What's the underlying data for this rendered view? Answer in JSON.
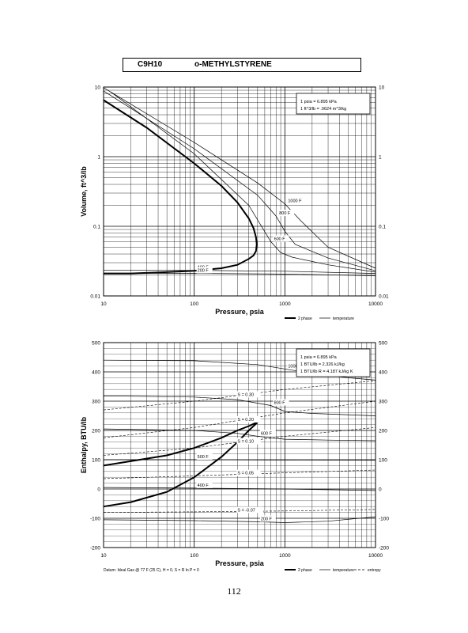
{
  "header": {
    "formula": "C9H10",
    "name": "o-METHYLSTYRENE"
  },
  "page_number": "112",
  "chart_data": [
    {
      "type": "line",
      "xscale": "log",
      "yscale": "log",
      "xlim": [
        10,
        10000
      ],
      "ylim": [
        0.01,
        10
      ],
      "xlabel": "Pressure, psia",
      "ylabel": "Volume, ft^3/lb",
      "x_ticks": [
        "10",
        "100",
        "1000",
        "10000"
      ],
      "y_ticks": [
        "0.01",
        "0.1",
        "1",
        "10"
      ],
      "conversion_box": [
        "1 psia = 6.895 kPa",
        "1 ft^3/lb = .0624 m^3/kg"
      ],
      "legend": [
        "2 phase",
        "temperature"
      ],
      "series": [
        {
          "kind": "2 phase",
          "x": [
            10,
            30,
            100,
            200,
            300,
            400,
            450,
            480,
            490,
            480,
            450,
            400,
            300,
            200,
            100,
            50,
            20,
            10
          ],
          "y": [
            6.5,
            2.6,
            0.8,
            0.38,
            0.22,
            0.13,
            0.095,
            0.07,
            0.055,
            0.044,
            0.038,
            0.034,
            0.028,
            0.025,
            0.023,
            0.022,
            0.021,
            0.021
          ]
        },
        {
          "kind": "temperature",
          "label": "1000 F",
          "x": [
            10,
            100,
            500,
            1000,
            1500,
            3000,
            10000
          ],
          "y": [
            9.8,
            1.6,
            0.42,
            0.21,
            0.12,
            0.05,
            0.025
          ]
        },
        {
          "kind": "temperature",
          "label": "800 F",
          "x": [
            10,
            100,
            500,
            800,
            1000,
            1300,
            3000,
            10000
          ],
          "y": [
            8.8,
            1.3,
            0.28,
            0.14,
            0.085,
            0.055,
            0.035,
            0.023
          ]
        },
        {
          "kind": "temperature",
          "label": "600 F",
          "x": [
            12,
            100,
            400,
            700,
            900,
            1200,
            3000,
            10000
          ],
          "y": [
            8.5,
            1.1,
            0.2,
            0.06,
            0.042,
            0.036,
            0.028,
            0.022
          ]
        },
        {
          "kind": "temperature",
          "label": "400 F",
          "x": [
            10,
            100,
            1000,
            10000
          ],
          "y": [
            0.0235,
            0.0233,
            0.0226,
            0.021
          ]
        },
        {
          "kind": "temperature",
          "label": "200 F",
          "x": [
            10,
            100,
            1000,
            10000
          ],
          "y": [
            0.0212,
            0.0211,
            0.0206,
            0.0195
          ]
        }
      ]
    },
    {
      "type": "line",
      "xscale": "log",
      "xlim": [
        10,
        10000
      ],
      "ylim": [
        -200,
        500
      ],
      "xlabel": "Pressure, psia",
      "ylabel": "Enthalpy, BTU/lb",
      "x_ticks": [
        "10",
        "100",
        "1000",
        "10000"
      ],
      "y_ticks": [
        "-200",
        "-100",
        "0",
        "100",
        "200",
        "300",
        "400",
        "500"
      ],
      "conversion_box": [
        "1 psia = 6.895 kPa",
        "1 BTU/lb = 2.326 kJ/kg",
        "1 BTU/lb R = 4.187 kJ/kg K"
      ],
      "legend": [
        "2 phase",
        "temperature",
        "entropy"
      ],
      "footnote": "Datum: Ideal Gas @ 77 F (25 C), H = 0, S = R ln P = 0",
      "series": [
        {
          "kind": "2 phase",
          "x": [
            10,
            50,
            100,
            200,
            300,
            400,
            470,
            500,
            470,
            400,
            300,
            200,
            100,
            50,
            20,
            10
          ],
          "y": [
            80,
            115,
            140,
            175,
            200,
            215,
            225,
            228,
            220,
            200,
            160,
            110,
            40,
            -10,
            -45,
            -60
          ]
        },
        {
          "kind": "temperature",
          "label": "1000 F",
          "x": [
            10,
            100,
            500,
            1000,
            2000,
            5000,
            10000
          ],
          "y": [
            440,
            438,
            425,
            410,
            395,
            380,
            372
          ]
        },
        {
          "kind": "temperature",
          "label": "800 F",
          "x": [
            10,
            100,
            300,
            700,
            1000,
            2000,
            10000
          ],
          "y": [
            318,
            314,
            305,
            285,
            265,
            258,
            250
          ]
        },
        {
          "kind": "temperature",
          "label": "600 F",
          "x": [
            10,
            100,
            300,
            500,
            1000,
            3000,
            10000
          ],
          "y": [
            205,
            200,
            190,
            180,
            170,
            167,
            165
          ]
        },
        {
          "kind": "temperature",
          "label": "500 F",
          "x": [
            10,
            100,
            1000,
            10000
          ],
          "y": [
            100,
            100,
            99,
            98
          ]
        },
        {
          "kind": "temperature",
          "label": "400 F",
          "x": [
            10,
            100,
            1000,
            10000
          ],
          "y": [
            5,
            3,
            0,
            -5
          ]
        },
        {
          "kind": "temperature",
          "label": "200 F",
          "x": [
            10,
            100,
            500,
            1000,
            3000,
            10000
          ],
          "y": [
            -105,
            -108,
            -112,
            -115,
            -110,
            -95
          ]
        },
        {
          "kind": "entropy",
          "label": "S = 0.30",
          "x": [
            10,
            100,
            1000,
            10000
          ],
          "y": [
            270,
            300,
            340,
            370
          ]
        },
        {
          "kind": "entropy",
          "label": "S = 0.20",
          "x": [
            10,
            100,
            1000,
            10000
          ],
          "y": [
            175,
            210,
            260,
            300
          ]
        },
        {
          "kind": "entropy",
          "label": "S = 0.10",
          "x": [
            10,
            100,
            1000,
            10000
          ],
          "y": [
            115,
            140,
            180,
            210
          ]
        },
        {
          "kind": "entropy",
          "label": "S = 0.05",
          "x": [
            10,
            100,
            1000,
            10000
          ],
          "y": [
            35,
            45,
            55,
            65
          ]
        },
        {
          "kind": "entropy",
          "label": "S = -0.07",
          "x": [
            10,
            100,
            1000,
            10000
          ],
          "y": [
            -80,
            -78,
            -75,
            -70
          ]
        }
      ]
    }
  ]
}
